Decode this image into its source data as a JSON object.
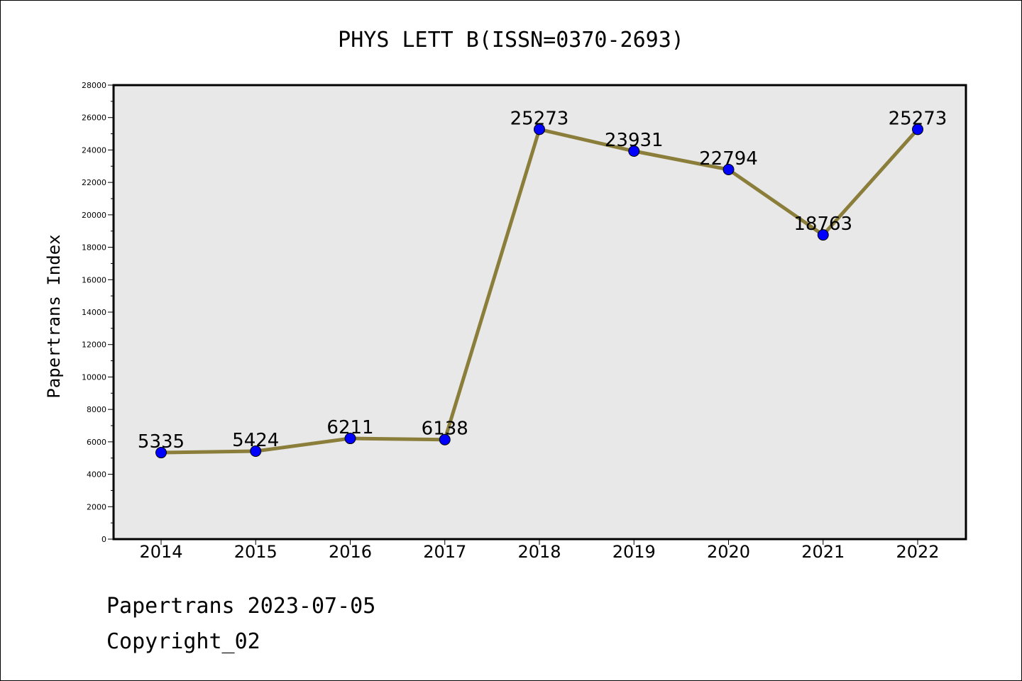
{
  "chart_data": {
    "type": "line",
    "title": "PHYS LETT B(ISSN=0370-2693)",
    "xlabel": "",
    "ylabel": "Papertrans Index",
    "categories": [
      "2014",
      "2015",
      "2016",
      "2017",
      "2018",
      "2019",
      "2020",
      "2021",
      "2022"
    ],
    "series": [
      {
        "values": [
          5335,
          5424,
          6211,
          6138,
          25273,
          23931,
          22794,
          18763,
          25273
        ],
        "data_labels": [
          "5335",
          "5424",
          "6211",
          "6138",
          "25273",
          "23931",
          "22794",
          "18763",
          "25273"
        ]
      }
    ],
    "ylim": [
      0,
      28000
    ],
    "yticks": [
      "0",
      "2000",
      "4000",
      "6000",
      "8000",
      "10000",
      "12000",
      "14000",
      "16000",
      "18000",
      "20000",
      "22000",
      "24000",
      "26000",
      "28000"
    ],
    "grid": false,
    "legend": "none",
    "colors": {
      "line": "#8b7d3a",
      "marker": "#0000ff",
      "plot_background": "#e8e8e8"
    }
  },
  "footer": {
    "line1": "Papertrans 2023-07-05",
    "line2": "Copyright_02"
  }
}
